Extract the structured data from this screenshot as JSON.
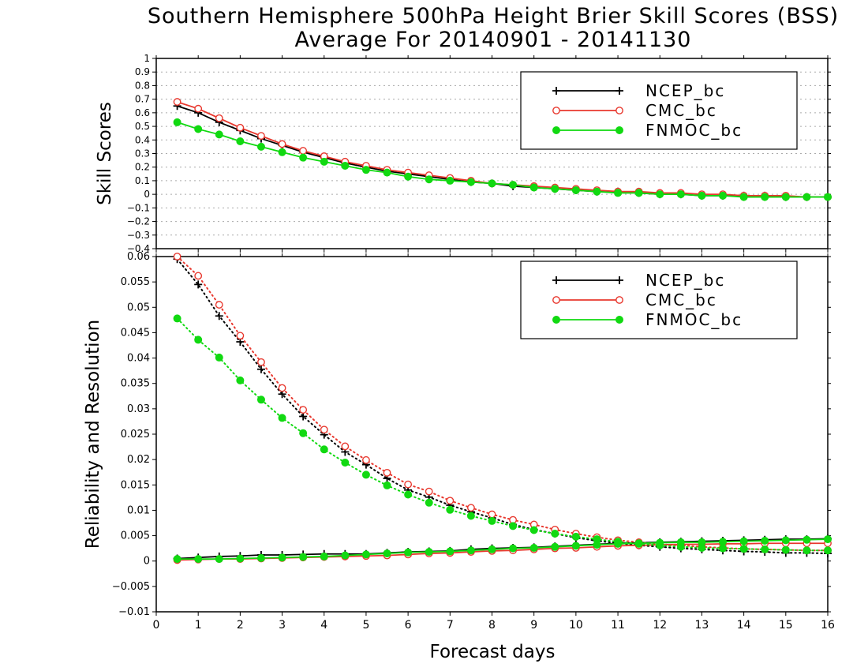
{
  "title_line1": "Southern Hemisphere 500hPa Height Brier Skill Scores (BSS)",
  "title_line2": "Average For 20140901 - 20141130",
  "xlabel": "Forecast days",
  "colors": {
    "NCEP_bc": "#000000",
    "CMC_bc": "#e8382e",
    "FNMOC_bc": "#11d911"
  },
  "chart_data": [
    {
      "type": "line",
      "ylabel": "Skill Scores",
      "xlim": [
        0,
        16
      ],
      "ylim": [
        -0.4,
        1
      ],
      "x_ticks": [
        "0",
        "1",
        "2",
        "3",
        "4",
        "5",
        "6",
        "7",
        "8",
        "9",
        "10",
        "11",
        "12",
        "13",
        "14",
        "15",
        "16"
      ],
      "y_ticks": [
        "−0.4",
        "−0.3",
        "−0.2",
        "−0.1",
        "0",
        "0.1",
        "0.2",
        "0.3",
        "0.4",
        "0.5",
        "0.6",
        "0.7",
        "0.8",
        "0.9",
        "1"
      ],
      "grid": true,
      "legend_position": "top-right",
      "x": [
        0.5,
        1,
        1.5,
        2,
        2.5,
        3,
        3.5,
        4,
        4.5,
        5,
        5.5,
        6,
        6.5,
        7,
        7.5,
        8,
        8.5,
        9,
        9.5,
        10,
        10.5,
        11,
        11.5,
        12,
        12.5,
        13,
        13.5,
        14,
        14.5,
        15,
        15.5,
        16
      ],
      "series": [
        {
          "name": "NCEP_bc",
          "marker": "plus",
          "style": "solid",
          "values": [
            0.65,
            0.6,
            0.53,
            0.47,
            0.41,
            0.36,
            0.31,
            0.27,
            0.23,
            0.2,
            0.17,
            0.15,
            0.13,
            0.11,
            0.09,
            0.08,
            0.06,
            0.05,
            0.04,
            0.03,
            0.02,
            0.02,
            0.01,
            0.0,
            0.0,
            -0.01,
            -0.01,
            -0.01,
            -0.01,
            -0.02,
            -0.02,
            -0.02
          ]
        },
        {
          "name": "CMC_bc",
          "marker": "open-circle",
          "style": "solid",
          "values": [
            0.68,
            0.63,
            0.56,
            0.49,
            0.43,
            0.37,
            0.32,
            0.28,
            0.24,
            0.21,
            0.18,
            0.16,
            0.14,
            0.12,
            0.1,
            0.08,
            0.07,
            0.06,
            0.05,
            0.04,
            0.03,
            0.02,
            0.02,
            0.01,
            0.01,
            0.0,
            0.0,
            -0.01,
            -0.01,
            -0.01,
            -0.02,
            -0.02
          ]
        },
        {
          "name": "FNMOC_bc",
          "marker": "filled-circle",
          "style": "solid",
          "values": [
            0.53,
            0.48,
            0.44,
            0.39,
            0.35,
            0.31,
            0.27,
            0.24,
            0.21,
            0.18,
            0.16,
            0.13,
            0.11,
            0.1,
            0.09,
            0.08,
            0.07,
            0.05,
            0.04,
            0.03,
            0.02,
            0.01,
            0.01,
            0.0,
            0.0,
            -0.01,
            -0.01,
            -0.02,
            -0.02,
            -0.02,
            -0.02,
            -0.02
          ]
        }
      ]
    },
    {
      "type": "line",
      "ylabel": "Reliability and Resolution",
      "xlim": [
        0,
        16
      ],
      "ylim": [
        -0.01,
        0.06
      ],
      "x_ticks": [
        "0",
        "1",
        "2",
        "3",
        "4",
        "5",
        "6",
        "7",
        "8",
        "9",
        "10",
        "11",
        "12",
        "13",
        "14",
        "15",
        "16"
      ],
      "y_ticks": [
        "−0.01",
        "−0.005",
        "0",
        "0.005",
        "0.01",
        "0.015",
        "0.02",
        "0.025",
        "0.03",
        "0.035",
        "0.04",
        "0.045",
        "0.05",
        "0.055",
        "0.06"
      ],
      "grid": false,
      "legend_position": "top-right",
      "x": [
        0.5,
        1,
        1.5,
        2,
        2.5,
        3,
        3.5,
        4,
        4.5,
        5,
        5.5,
        6,
        6.5,
        7,
        7.5,
        8,
        8.5,
        9,
        9.5,
        10,
        10.5,
        11,
        11.5,
        12,
        12.5,
        13,
        13.5,
        14,
        14.5,
        15,
        15.5,
        16
      ],
      "series": [
        {
          "name": "NCEP_bc",
          "marker": "plus",
          "style": "dotted",
          "values": [
            0.0595,
            0.0545,
            0.0483,
            0.0432,
            0.0378,
            0.0329,
            0.0285,
            0.0249,
            0.0215,
            0.019,
            0.0163,
            0.014,
            0.0126,
            0.011,
            0.0097,
            0.0085,
            0.0072,
            0.0062,
            0.0054,
            0.0046,
            0.004,
            0.0035,
            0.0031,
            0.0028,
            0.0025,
            0.0023,
            0.0021,
            0.0019,
            0.0018,
            0.0016,
            0.0016,
            0.0015
          ]
        },
        {
          "name": "NCEP_bc",
          "marker": "plus",
          "style": "solid",
          "values": [
            0.0005,
            0.0007,
            0.0009,
            0.001,
            0.0012,
            0.0012,
            0.0013,
            0.0014,
            0.0014,
            0.0014,
            0.0016,
            0.0018,
            0.0019,
            0.002,
            0.0023,
            0.0025,
            0.0026,
            0.0027,
            0.0029,
            0.0031,
            0.0033,
            0.0035,
            0.0036,
            0.0037,
            0.0038,
            0.0039,
            0.004,
            0.0041,
            0.0042,
            0.0043,
            0.0043,
            0.0044
          ]
        },
        {
          "name": "CMC_bc",
          "marker": "open-circle",
          "style": "dotted",
          "values": [
            0.06,
            0.0562,
            0.0505,
            0.0444,
            0.0392,
            0.0341,
            0.0298,
            0.0259,
            0.0226,
            0.0199,
            0.0174,
            0.0151,
            0.0137,
            0.0119,
            0.0105,
            0.0092,
            0.0081,
            0.0072,
            0.0062,
            0.0054,
            0.0047,
            0.0041,
            0.0037,
            0.0033,
            0.0031,
            0.0028,
            0.0026,
            0.0024,
            0.0023,
            0.0022,
            0.0021,
            0.0021
          ]
        },
        {
          "name": "CMC_bc",
          "marker": "open-circle",
          "style": "solid",
          "values": [
            0.0002,
            0.0003,
            0.0004,
            0.0004,
            0.0005,
            0.0006,
            0.0007,
            0.0008,
            0.0009,
            0.001,
            0.0011,
            0.0013,
            0.0015,
            0.0016,
            0.0018,
            0.002,
            0.0021,
            0.0023,
            0.0025,
            0.0026,
            0.0028,
            0.003,
            0.0031,
            0.0032,
            0.0033,
            0.0033,
            0.0034,
            0.0034,
            0.0035,
            0.0035,
            0.0035,
            0.0035
          ]
        },
        {
          "name": "FNMOC_bc",
          "marker": "filled-circle",
          "style": "dotted",
          "values": [
            0.0478,
            0.0436,
            0.0401,
            0.0356,
            0.0318,
            0.0282,
            0.0252,
            0.022,
            0.0194,
            0.017,
            0.0149,
            0.0131,
            0.0115,
            0.0101,
            0.0089,
            0.0079,
            0.0069,
            0.0061,
            0.0054,
            0.0048,
            0.0043,
            0.0038,
            0.0034,
            0.0031,
            0.0028,
            0.0026,
            0.0025,
            0.0024,
            0.0023,
            0.0022,
            0.0021,
            0.0021
          ]
        },
        {
          "name": "FNMOC_bc",
          "marker": "filled-circle",
          "style": "solid",
          "values": [
            0.0004,
            0.0004,
            0.0004,
            0.0005,
            0.0006,
            0.0007,
            0.0008,
            0.0009,
            0.0011,
            0.0013,
            0.0015,
            0.0017,
            0.0018,
            0.0019,
            0.0021,
            0.0023,
            0.0025,
            0.0026,
            0.0028,
            0.003,
            0.0032,
            0.0034,
            0.0035,
            0.0036,
            0.0037,
            0.0037,
            0.0038,
            0.0039,
            0.004,
            0.0041,
            0.0042,
            0.0043
          ]
        }
      ]
    }
  ]
}
